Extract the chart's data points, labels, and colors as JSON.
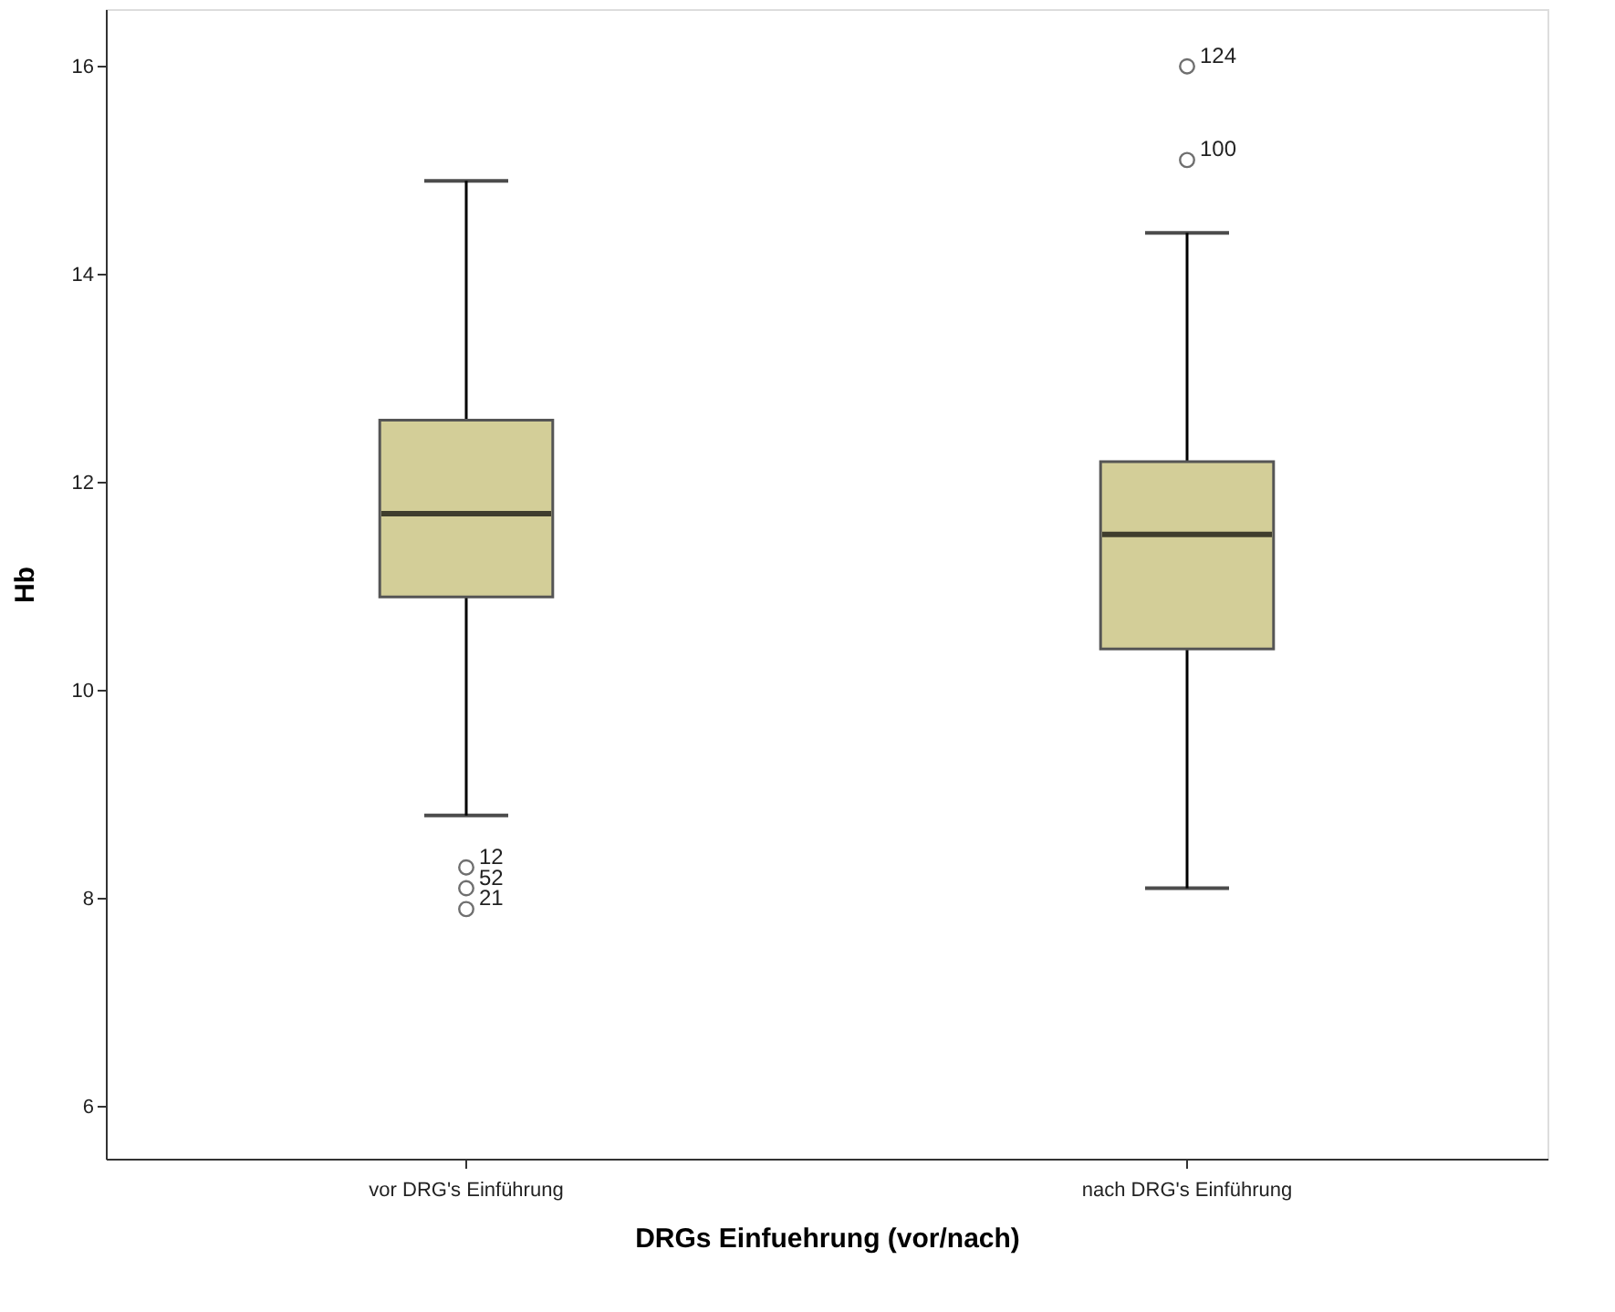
{
  "chart_data": {
    "type": "box",
    "xlabel": "DRGs Einfuehrung (vor/nach)",
    "ylabel": "Hb",
    "categories": [
      "vor DRG's Einführung",
      "nach DRG's Einführung"
    ],
    "boxes": [
      {
        "low": 8.8,
        "q1": 10.9,
        "median": 11.7,
        "q3": 12.6,
        "high": 14.9,
        "outliers": [
          8.3,
          8.1,
          7.9
        ]
      },
      {
        "low": 8.1,
        "q1": 10.4,
        "median": 11.5,
        "q3": 12.2,
        "high": 14.4,
        "outliers": [
          16.0,
          15.1
        ]
      }
    ],
    "color": "#d3ce98",
    "ylim": [
      5.5,
      16.55
    ],
    "yticks": [
      6,
      8,
      10,
      12,
      14,
      16
    ],
    "grid": false,
    "annotations": [
      "12",
      "52",
      "21",
      "124",
      "100"
    ]
  }
}
